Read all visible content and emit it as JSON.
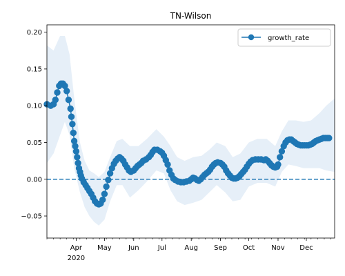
{
  "chart_data": {
    "type": "line",
    "title": "TN-Wilson",
    "xlabel": "",
    "ylabel": "",
    "x_axis": {
      "kind": "date",
      "range": [
        "2020-03-01",
        "2020-12-31"
      ],
      "major_ticks": [
        {
          "date": "2020-04-01",
          "label": "Apr",
          "sublabel": "2020"
        },
        {
          "date": "2020-05-01",
          "label": "May"
        },
        {
          "date": "2020-06-01",
          "label": "Jun"
        },
        {
          "date": "2020-07-01",
          "label": "Jul"
        },
        {
          "date": "2020-08-01",
          "label": "Aug"
        },
        {
          "date": "2020-09-01",
          "label": "Sep"
        },
        {
          "date": "2020-10-01",
          "label": "Oct"
        },
        {
          "date": "2020-11-01",
          "label": "Nov"
        },
        {
          "date": "2020-12-01",
          "label": "Dec"
        }
      ]
    },
    "y_axis": {
      "ylim": [
        -0.08,
        0.21
      ],
      "ticks": [
        -0.05,
        0.0,
        0.05,
        0.1,
        0.15,
        0.2
      ],
      "tick_labels": [
        "−0.05",
        "0.00",
        "0.05",
        "0.10",
        "0.15",
        "0.20"
      ]
    },
    "legend": {
      "location": "top-right",
      "entries": [
        "growth_rate"
      ]
    },
    "reference_line": {
      "y": 0.0,
      "style": "dashed"
    },
    "colors": {
      "line": "#1f77b4",
      "band": "#dce8f5",
      "zero_line": "#1f77b4"
    },
    "series": [
      {
        "name": "growth_rate",
        "marker": "circle",
        "points": [
          [
            "2020-03-01",
            0.102
          ],
          [
            "2020-03-05",
            0.1
          ],
          [
            "2020-03-08",
            0.102
          ],
          [
            "2020-03-10",
            0.108
          ],
          [
            "2020-03-12",
            0.118
          ],
          [
            "2020-03-14",
            0.127
          ],
          [
            "2020-03-16",
            0.13
          ],
          [
            "2020-03-18",
            0.13
          ],
          [
            "2020-03-20",
            0.127
          ],
          [
            "2020-03-22",
            0.12
          ],
          [
            "2020-03-24",
            0.108
          ],
          [
            "2020-03-26",
            0.096
          ],
          [
            "2020-03-27",
            0.085
          ],
          [
            "2020-03-28",
            0.075
          ],
          [
            "2020-03-29",
            0.063
          ],
          [
            "2020-03-30",
            0.052
          ],
          [
            "2020-03-31",
            0.045
          ],
          [
            "2020-04-01",
            0.038
          ],
          [
            "2020-04-02",
            0.03
          ],
          [
            "2020-04-03",
            0.022
          ],
          [
            "2020-04-04",
            0.015
          ],
          [
            "2020-04-05",
            0.01
          ],
          [
            "2020-04-06",
            0.005
          ],
          [
            "2020-04-07",
            0.001
          ],
          [
            "2020-04-09",
            -0.004
          ],
          [
            "2020-04-11",
            -0.008
          ],
          [
            "2020-04-13",
            -0.012
          ],
          [
            "2020-04-15",
            -0.016
          ],
          [
            "2020-04-17",
            -0.02
          ],
          [
            "2020-04-19",
            -0.025
          ],
          [
            "2020-04-21",
            -0.03
          ],
          [
            "2020-04-23",
            -0.033
          ],
          [
            "2020-04-25",
            -0.034
          ],
          [
            "2020-04-27",
            -0.033
          ],
          [
            "2020-04-29",
            -0.028
          ],
          [
            "2020-05-01",
            -0.02
          ],
          [
            "2020-05-03",
            -0.01
          ],
          [
            "2020-05-05",
            -0.001
          ],
          [
            "2020-05-07",
            0.008
          ],
          [
            "2020-05-09",
            0.015
          ],
          [
            "2020-05-11",
            0.021
          ],
          [
            "2020-05-13",
            0.025
          ],
          [
            "2020-05-15",
            0.028
          ],
          [
            "2020-05-17",
            0.03
          ],
          [
            "2020-05-19",
            0.028
          ],
          [
            "2020-05-21",
            0.025
          ],
          [
            "2020-05-23",
            0.02
          ],
          [
            "2020-05-25",
            0.016
          ],
          [
            "2020-05-27",
            0.012
          ],
          [
            "2020-05-29",
            0.01
          ],
          [
            "2020-06-01",
            0.012
          ],
          [
            "2020-06-03",
            0.015
          ],
          [
            "2020-06-05",
            0.018
          ],
          [
            "2020-06-07",
            0.02
          ],
          [
            "2020-06-09",
            0.022
          ],
          [
            "2020-06-11",
            0.025
          ],
          [
            "2020-06-14",
            0.027
          ],
          [
            "2020-06-17",
            0.03
          ],
          [
            "2020-06-19",
            0.033
          ],
          [
            "2020-06-21",
            0.037
          ],
          [
            "2020-06-23",
            0.04
          ],
          [
            "2020-06-26",
            0.04
          ],
          [
            "2020-06-29",
            0.038
          ],
          [
            "2020-07-01",
            0.036
          ],
          [
            "2020-07-03",
            0.032
          ],
          [
            "2020-07-05",
            0.026
          ],
          [
            "2020-07-07",
            0.02
          ],
          [
            "2020-07-09",
            0.012
          ],
          [
            "2020-07-11",
            0.006
          ],
          [
            "2020-07-13",
            0.001
          ],
          [
            "2020-07-15",
            -0.001
          ],
          [
            "2020-07-18",
            -0.003
          ],
          [
            "2020-07-21",
            -0.004
          ],
          [
            "2020-07-24",
            -0.004
          ],
          [
            "2020-07-27",
            -0.003
          ],
          [
            "2020-07-30",
            -0.002
          ],
          [
            "2020-08-01",
            0.0
          ],
          [
            "2020-08-03",
            0.002
          ],
          [
            "2020-08-05",
            0.001
          ],
          [
            "2020-08-07",
            -0.001
          ],
          [
            "2020-08-09",
            -0.002
          ],
          [
            "2020-08-11",
            0.0
          ],
          [
            "2020-08-13",
            0.003
          ],
          [
            "2020-08-15",
            0.006
          ],
          [
            "2020-08-17",
            0.008
          ],
          [
            "2020-08-19",
            0.01
          ],
          [
            "2020-08-21",
            0.013
          ],
          [
            "2020-08-23",
            0.017
          ],
          [
            "2020-08-25",
            0.02
          ],
          [
            "2020-08-27",
            0.022
          ],
          [
            "2020-08-29",
            0.023
          ],
          [
            "2020-09-01",
            0.022
          ],
          [
            "2020-09-03",
            0.02
          ],
          [
            "2020-09-05",
            0.017
          ],
          [
            "2020-09-07",
            0.012
          ],
          [
            "2020-09-09",
            0.008
          ],
          [
            "2020-09-11",
            0.005
          ],
          [
            "2020-09-13",
            0.002
          ],
          [
            "2020-09-15",
            0.001
          ],
          [
            "2020-09-17",
            0.001
          ],
          [
            "2020-09-19",
            0.002
          ],
          [
            "2020-09-21",
            0.004
          ],
          [
            "2020-09-23",
            0.007
          ],
          [
            "2020-09-25",
            0.01
          ],
          [
            "2020-09-27",
            0.013
          ],
          [
            "2020-09-29",
            0.017
          ],
          [
            "2020-10-01",
            0.021
          ],
          [
            "2020-10-03",
            0.024
          ],
          [
            "2020-10-05",
            0.026
          ],
          [
            "2020-10-08",
            0.027
          ],
          [
            "2020-10-11",
            0.027
          ],
          [
            "2020-10-14",
            0.027
          ],
          [
            "2020-10-17",
            0.026
          ],
          [
            "2020-10-19",
            0.027
          ],
          [
            "2020-10-21",
            0.025
          ],
          [
            "2020-10-23",
            0.022
          ],
          [
            "2020-10-25",
            0.019
          ],
          [
            "2020-10-27",
            0.017
          ],
          [
            "2020-10-29",
            0.016
          ],
          [
            "2020-10-31",
            0.017
          ],
          [
            "2020-11-01",
            0.02
          ],
          [
            "2020-11-03",
            0.03
          ],
          [
            "2020-11-05",
            0.038
          ],
          [
            "2020-11-07",
            0.045
          ],
          [
            "2020-11-09",
            0.05
          ],
          [
            "2020-11-11",
            0.053
          ],
          [
            "2020-11-13",
            0.054
          ],
          [
            "2020-11-15",
            0.054
          ],
          [
            "2020-11-17",
            0.052
          ],
          [
            "2020-11-19",
            0.05
          ],
          [
            "2020-11-21",
            0.048
          ],
          [
            "2020-11-23",
            0.047
          ],
          [
            "2020-11-25",
            0.046
          ],
          [
            "2020-11-27",
            0.046
          ],
          [
            "2020-11-29",
            0.046
          ],
          [
            "2020-12-01",
            0.046
          ],
          [
            "2020-12-03",
            0.046
          ],
          [
            "2020-12-05",
            0.047
          ],
          [
            "2020-12-07",
            0.048
          ],
          [
            "2020-12-09",
            0.05
          ],
          [
            "2020-12-11",
            0.052
          ],
          [
            "2020-12-13",
            0.053
          ],
          [
            "2020-12-15",
            0.054
          ],
          [
            "2020-12-17",
            0.055
          ],
          [
            "2020-12-19",
            0.056
          ],
          [
            "2020-12-21",
            0.056
          ],
          [
            "2020-12-23",
            0.056
          ],
          [
            "2020-12-25",
            0.056
          ]
        ],
        "band": [
          [
            "2020-03-01",
            0.022,
            0.182
          ],
          [
            "2020-03-08",
            0.035,
            0.175
          ],
          [
            "2020-03-15",
            0.06,
            0.195
          ],
          [
            "2020-03-20",
            0.078,
            0.195
          ],
          [
            "2020-03-25",
            0.06,
            0.17
          ],
          [
            "2020-03-30",
            0.015,
            0.11
          ],
          [
            "2020-04-05",
            -0.018,
            0.05
          ],
          [
            "2020-04-10",
            -0.038,
            0.025
          ],
          [
            "2020-04-15",
            -0.05,
            0.012
          ],
          [
            "2020-04-20",
            -0.058,
            0.008
          ],
          [
            "2020-04-25",
            -0.063,
            0.003
          ],
          [
            "2020-05-01",
            -0.055,
            0.01
          ],
          [
            "2020-05-07",
            -0.03,
            0.03
          ],
          [
            "2020-05-14",
            -0.008,
            0.052
          ],
          [
            "2020-05-20",
            -0.008,
            0.055
          ],
          [
            "2020-05-28",
            -0.025,
            0.045
          ],
          [
            "2020-06-06",
            -0.015,
            0.045
          ],
          [
            "2020-06-15",
            -0.003,
            0.055
          ],
          [
            "2020-06-25",
            0.012,
            0.068
          ],
          [
            "2020-07-03",
            0.008,
            0.058
          ],
          [
            "2020-07-10",
            -0.015,
            0.045
          ],
          [
            "2020-07-17",
            -0.03,
            0.03
          ],
          [
            "2020-07-25",
            -0.035,
            0.025
          ],
          [
            "2020-08-03",
            -0.032,
            0.03
          ],
          [
            "2020-08-12",
            -0.028,
            0.032
          ],
          [
            "2020-08-20",
            -0.018,
            0.04
          ],
          [
            "2020-08-28",
            -0.008,
            0.05
          ],
          [
            "2020-09-06",
            -0.018,
            0.045
          ],
          [
            "2020-09-14",
            -0.03,
            0.03
          ],
          [
            "2020-09-22",
            -0.028,
            0.035
          ],
          [
            "2020-10-01",
            -0.01,
            0.05
          ],
          [
            "2020-10-10",
            -0.005,
            0.055
          ],
          [
            "2020-10-20",
            -0.005,
            0.055
          ],
          [
            "2020-10-29",
            -0.01,
            0.045
          ],
          [
            "2020-11-05",
            0.01,
            0.065
          ],
          [
            "2020-11-12",
            0.02,
            0.08
          ],
          [
            "2020-11-20",
            0.018,
            0.08
          ],
          [
            "2020-11-28",
            0.015,
            0.078
          ],
          [
            "2020-12-06",
            0.015,
            0.08
          ],
          [
            "2020-12-15",
            0.015,
            0.09
          ],
          [
            "2020-12-22",
            0.012,
            0.1
          ],
          [
            "2020-12-31",
            0.01,
            0.11
          ]
        ]
      }
    ]
  }
}
